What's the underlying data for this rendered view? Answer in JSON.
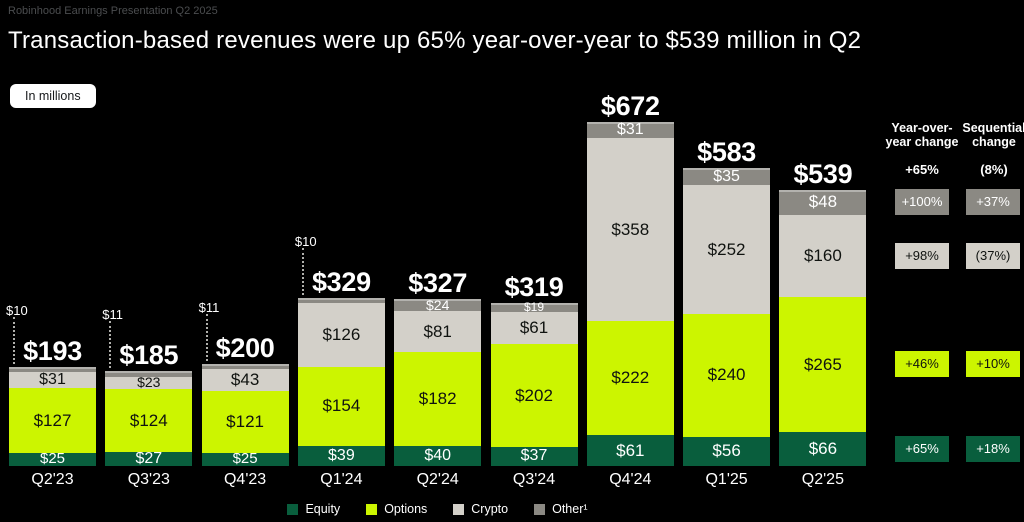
{
  "slide": {
    "deck_label": "Robinhood Earnings Presentation Q2 2025",
    "title": "Transaction-based revenues were up 65% year-over-year to $539 million in Q2",
    "units_badge": "In millions"
  },
  "chart_data": {
    "type": "bar",
    "stacked": true,
    "units": "USD millions",
    "value_prefix": "$",
    "background": "#000000",
    "categories": [
      "Q2'23",
      "Q3'23",
      "Q4'23",
      "Q1'24",
      "Q2'24",
      "Q3'24",
      "Q4'24",
      "Q1'25",
      "Q2'25"
    ],
    "series": [
      {
        "name": "Equity",
        "color": "#095e3d",
        "label_color": "#ffffff",
        "values": [
          25,
          27,
          25,
          39,
          40,
          37,
          61,
          56,
          66
        ]
      },
      {
        "name": "Options",
        "color": "#ccf500",
        "label_color": "#101310",
        "values": [
          127,
          124,
          121,
          154,
          182,
          202,
          222,
          240,
          265
        ]
      },
      {
        "name": "Crypto",
        "color": "#d3d0c9",
        "label_color": "#101310",
        "values": [
          31,
          23,
          43,
          126,
          81,
          61,
          358,
          252,
          160
        ]
      },
      {
        "name": "Other¹",
        "color": "#8b8983",
        "label_color": "#ffffff",
        "values": [
          10,
          11,
          11,
          10,
          24,
          19,
          31,
          35,
          48
        ]
      }
    ],
    "totals": [
      193,
      185,
      200,
      329,
      327,
      319,
      672,
      583,
      539
    ],
    "other_value_callout": [
      true,
      true,
      true,
      true,
      false,
      false,
      false,
      false,
      false
    ],
    "legend": [
      "Equity",
      "Options",
      "Crypto",
      "Other¹"
    ],
    "legend_position": "bottom"
  },
  "change_panel": {
    "columns": [
      {
        "id": "yoy",
        "header": [
          "Year-over-",
          "year change"
        ],
        "summary": "+65%",
        "badges": [
          {
            "series": "Other¹",
            "text": "+100%"
          },
          {
            "series": "Crypto",
            "text": "+98%"
          },
          {
            "series": "Options",
            "text": "+46%"
          },
          {
            "series": "Equity",
            "text": "+65%"
          }
        ]
      },
      {
        "id": "seq",
        "header": [
          "Sequential",
          "change"
        ],
        "summary": "(8%)",
        "badges": [
          {
            "series": "Other¹",
            "text": "+37%"
          },
          {
            "series": "Crypto",
            "text": "(37%)"
          },
          {
            "series": "Options",
            "text": "+10%"
          },
          {
            "series": "Equity",
            "text": "+18%"
          }
        ]
      }
    ]
  }
}
